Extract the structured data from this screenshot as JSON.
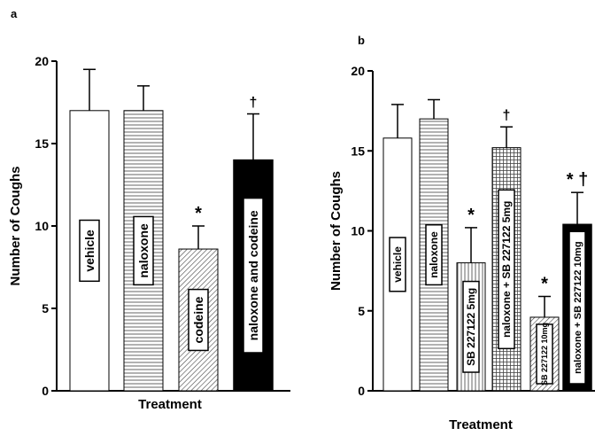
{
  "chart_data": [
    {
      "type": "bar",
      "panel": "a",
      "xlabel": "Treatment",
      "ylabel": "Number of Coughs",
      "ylim": [
        0,
        20
      ],
      "yticks": [
        "0",
        "5",
        "10",
        "15",
        "20"
      ],
      "grid": false,
      "categories": [
        "vehicle",
        "naloxone",
        "codeine",
        "naloxone and codeine"
      ],
      "values": [
        17,
        17,
        8.6,
        14
      ],
      "error": [
        2.5,
        1.5,
        1.4,
        2.8
      ],
      "annotations": [
        "",
        "",
        "*",
        "†"
      ],
      "fills": [
        "white",
        "hlines",
        "diagonal",
        "black"
      ]
    },
    {
      "type": "bar",
      "panel": "b",
      "xlabel": "Treatment",
      "ylabel": "Number of Coughs",
      "ylim": [
        0,
        20
      ],
      "yticks": [
        "0",
        "5",
        "10",
        "15",
        "20"
      ],
      "grid": false,
      "categories": [
        "vehicle",
        "naloxone",
        "SB 227122 5mg",
        "naloxone + SB 227122 5mg",
        "SB 227122 10mg",
        "naloxone + SB 227122 10mg"
      ],
      "values": [
        15.8,
        17,
        8,
        15.2,
        4.6,
        10.4
      ],
      "error": [
        2.1,
        1.2,
        2.2,
        1.3,
        1.3,
        2
      ],
      "annotations": [
        "",
        "",
        "*",
        "†",
        "*",
        "* †"
      ],
      "fills": [
        "white",
        "hlines",
        "vlines",
        "grid",
        "diagonal",
        "black"
      ]
    }
  ]
}
